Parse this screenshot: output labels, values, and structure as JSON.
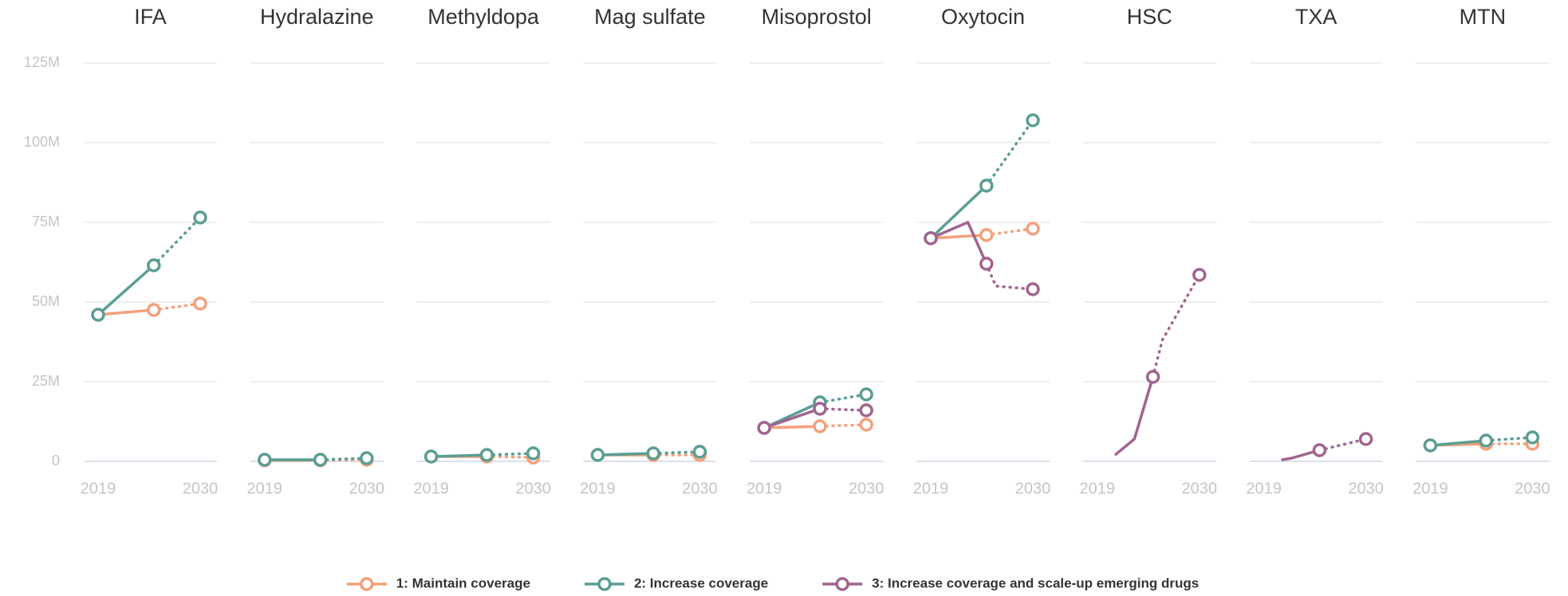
{
  "chart_data": {
    "type": "line",
    "xlim": [
      2019,
      2030
    ],
    "xticks": [
      2019,
      2030
    ],
    "ylim": [
      0,
      125
    ],
    "yticks": [
      {
        "value": 0,
        "label": "0"
      },
      {
        "value": 25,
        "label": "25M"
      },
      {
        "value": 50,
        "label": "50M"
      },
      {
        "value": 75,
        "label": "75M"
      },
      {
        "value": 100,
        "label": "100M"
      },
      {
        "value": 125,
        "label": "125M"
      }
    ],
    "grid": true,
    "solid_until": 2025,
    "marker_x": [
      2019,
      2025,
      2030
    ],
    "legend": "bottom",
    "panels": [
      {
        "title": "IFA",
        "series": [
          {
            "name": "1: Maintain coverage",
            "color": "#f4a07a",
            "x": [
              2019,
              2025,
              2030
            ],
            "values": [
              46,
              47.5,
              49.5
            ]
          },
          {
            "name": "2: Increase coverage",
            "color": "#5a9e94",
            "x": [
              2019,
              2025,
              2030
            ],
            "values": [
              46,
              61.5,
              76.5
            ]
          }
        ]
      },
      {
        "title": "Hydralazine",
        "series": [
          {
            "name": "1: Maintain coverage",
            "color": "#f4a07a",
            "x": [
              2019,
              2025,
              2030
            ],
            "values": [
              0.3,
              0.3,
              0.5
            ]
          },
          {
            "name": "2: Increase coverage",
            "color": "#5a9e94",
            "x": [
              2019,
              2025,
              2030
            ],
            "values": [
              0.5,
              0.5,
              1
            ]
          }
        ]
      },
      {
        "title": "Methyldopa",
        "series": [
          {
            "name": "1: Maintain coverage",
            "color": "#f4a07a",
            "x": [
              2019,
              2025,
              2030
            ],
            "values": [
              1.5,
              1.5,
              1.2
            ]
          },
          {
            "name": "2: Increase coverage",
            "color": "#5a9e94",
            "x": [
              2019,
              2025,
              2030
            ],
            "values": [
              1.5,
              2,
              2.5
            ]
          }
        ]
      },
      {
        "title": "Mag sulfate",
        "series": [
          {
            "name": "1: Maintain coverage",
            "color": "#f4a07a",
            "x": [
              2019,
              2025,
              2030
            ],
            "values": [
              2,
              2,
              2
            ]
          },
          {
            "name": "2: Increase coverage",
            "color": "#5a9e94",
            "x": [
              2019,
              2025,
              2030
            ],
            "values": [
              2,
              2.5,
              3
            ]
          }
        ]
      },
      {
        "title": "Misoprostol",
        "series": [
          {
            "name": "1: Maintain coverage",
            "color": "#f4a07a",
            "x": [
              2019,
              2025,
              2030
            ],
            "values": [
              10.5,
              11,
              11.5
            ]
          },
          {
            "name": "2: Increase coverage",
            "color": "#5a9e94",
            "x": [
              2019,
              2025,
              2030
            ],
            "values": [
              10.5,
              18.5,
              21
            ]
          },
          {
            "name": "3: Increase coverage and scale-up emerging drugs",
            "color": "#a0658f",
            "x": [
              2019,
              2025,
              2030
            ],
            "values": [
              10.5,
              16.5,
              16
            ]
          }
        ]
      },
      {
        "title": "Oxytocin",
        "series": [
          {
            "name": "1: Maintain coverage",
            "color": "#f4a07a",
            "x": [
              2019,
              2025,
              2030
            ],
            "values": [
              70,
              71,
              73
            ]
          },
          {
            "name": "2: Increase coverage",
            "color": "#5a9e94",
            "x": [
              2019,
              2025,
              2030
            ],
            "values": [
              70,
              86.5,
              107
            ]
          },
          {
            "name": "3: Increase coverage and scale-up emerging drugs",
            "color": "#a0658f",
            "x": [
              2019,
              2023,
              2025,
              2026,
              2030
            ],
            "values": [
              70,
              75,
              62,
              55,
              54
            ]
          }
        ]
      },
      {
        "title": "HSC",
        "series": [
          {
            "name": "3: Increase coverage and scale-up emerging drugs",
            "color": "#a0658f",
            "x": [
              2021,
              2023,
              2025,
              2026,
              2030
            ],
            "values": [
              2.2,
              7,
              26.5,
              38,
              58.5
            ]
          }
        ]
      },
      {
        "title": "TXA",
        "series": [
          {
            "name": "3: Increase coverage and scale-up emerging drugs",
            "color": "#a0658f",
            "x": [
              2021,
              2022,
              2025,
              2030
            ],
            "values": [
              0.5,
              1,
              3.5,
              7
            ]
          }
        ]
      },
      {
        "title": "MTN",
        "series": [
          {
            "name": "1: Maintain coverage",
            "color": "#f4a07a",
            "x": [
              2019,
              2025,
              2030
            ],
            "values": [
              5,
              5.5,
              5.5
            ]
          },
          {
            "name": "2: Increase coverage",
            "color": "#5a9e94",
            "x": [
              2019,
              2025,
              2030
            ],
            "values": [
              5,
              6.5,
              7.5
            ]
          }
        ]
      }
    ]
  }
}
